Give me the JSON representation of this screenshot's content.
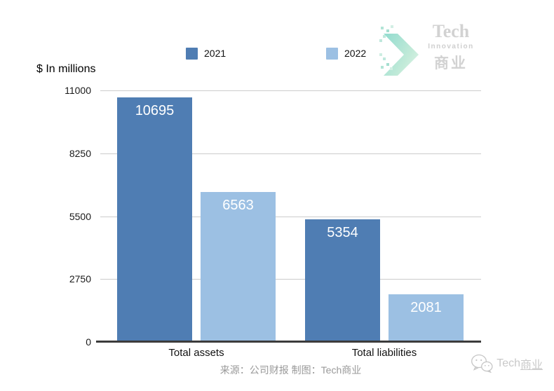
{
  "chart_data": {
    "type": "bar",
    "categories": [
      "Total assets",
      "Total liabilities"
    ],
    "series": [
      {
        "name": "2021",
        "color": "#4F7DB3",
        "values": [
          10695,
          5354
        ]
      },
      {
        "name": "2022",
        "color": "#9CC0E3",
        "values": [
          6563,
          2081
        ]
      }
    ],
    "title": "",
    "xlabel": "",
    "ylabel": "$ In millions",
    "yticks": [
      0,
      2750,
      5500,
      8250,
      11000
    ],
    "ylim": [
      0,
      11000
    ],
    "grid": true,
    "legend_position": "top",
    "value_labels": true,
    "value_label_color": "#ffffff",
    "grid_color": "#cccccc",
    "axis_color": "#3c3c3c"
  },
  "logo": {
    "tech": "Tech",
    "innovation": "Innovation",
    "cn": "商业"
  },
  "footer": {
    "source": "来源：公司财报 制图：Tech商业",
    "wechat_en": "Tech",
    "wechat_cn": "商业"
  }
}
